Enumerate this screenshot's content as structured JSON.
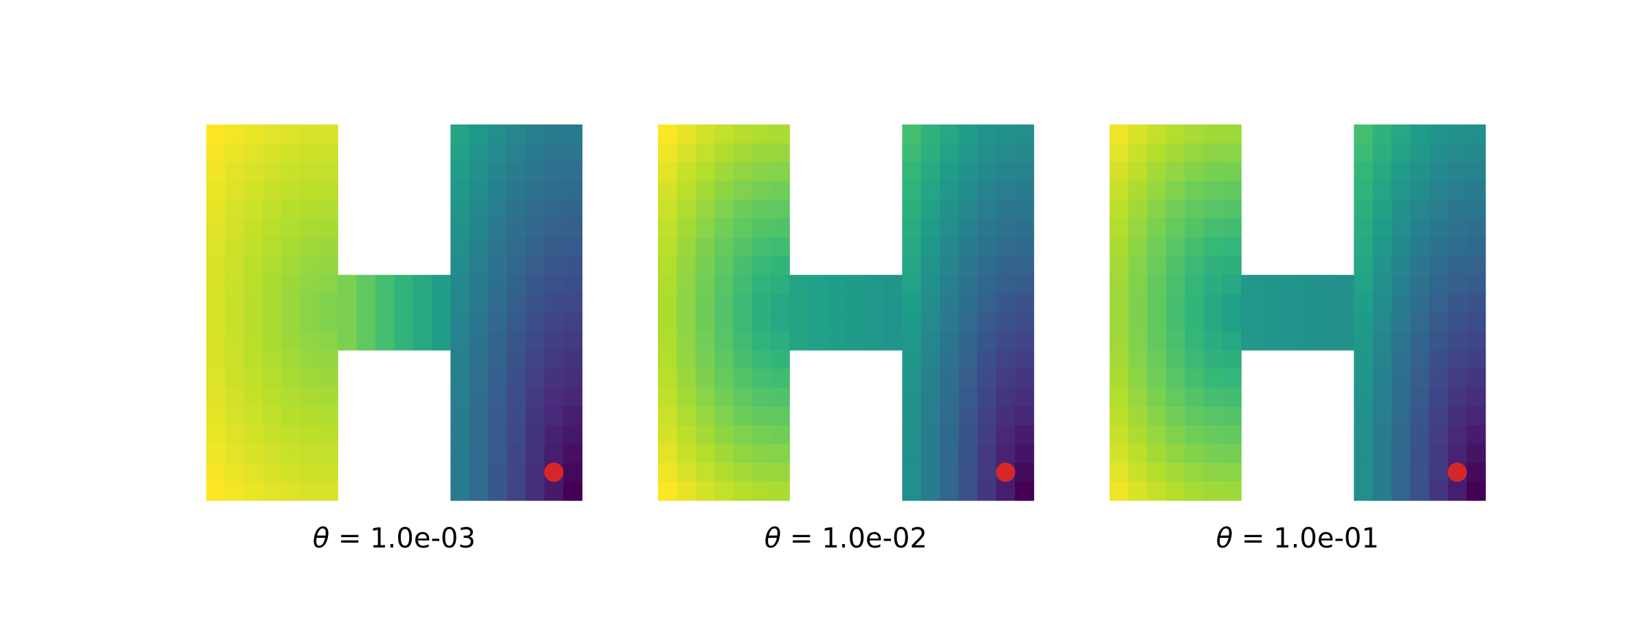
{
  "chart_data": [
    {
      "type": "heatmap",
      "colormap": "viridis",
      "marker_color": "#d62728",
      "grid": false,
      "params": {
        "theta": 0.001,
        "left_low": 0.8,
        "left_high": 1.0,
        "right_low": 0.0,
        "right_high": 0.58,
        "corridor_from": 0.8,
        "corridor_to": 0.55
      },
      "caption": {
        "symbol": "θ",
        "equals": " = 1.0e-03"
      }
    },
    {
      "type": "heatmap",
      "colormap": "viridis",
      "marker_color": "#d62728",
      "grid": false,
      "params": {
        "theta": 0.01,
        "left_low": 0.58,
        "left_high": 1.0,
        "right_low": 0.0,
        "right_high": 0.7,
        "corridor_from": 0.58,
        "corridor_to": 0.52
      },
      "caption": {
        "symbol": "θ",
        "equals": " = 1.0e-02"
      }
    },
    {
      "type": "heatmap",
      "colormap": "viridis",
      "marker_color": "#d62728",
      "grid": false,
      "params": {
        "theta": 0.1,
        "left_low": 0.55,
        "left_high": 0.98,
        "right_low": 0.0,
        "right_high": 0.7,
        "corridor_from": 0.53,
        "corridor_to": 0.5
      },
      "caption": {
        "symbol": "θ",
        "equals": " = 1.0e-01"
      }
    }
  ]
}
